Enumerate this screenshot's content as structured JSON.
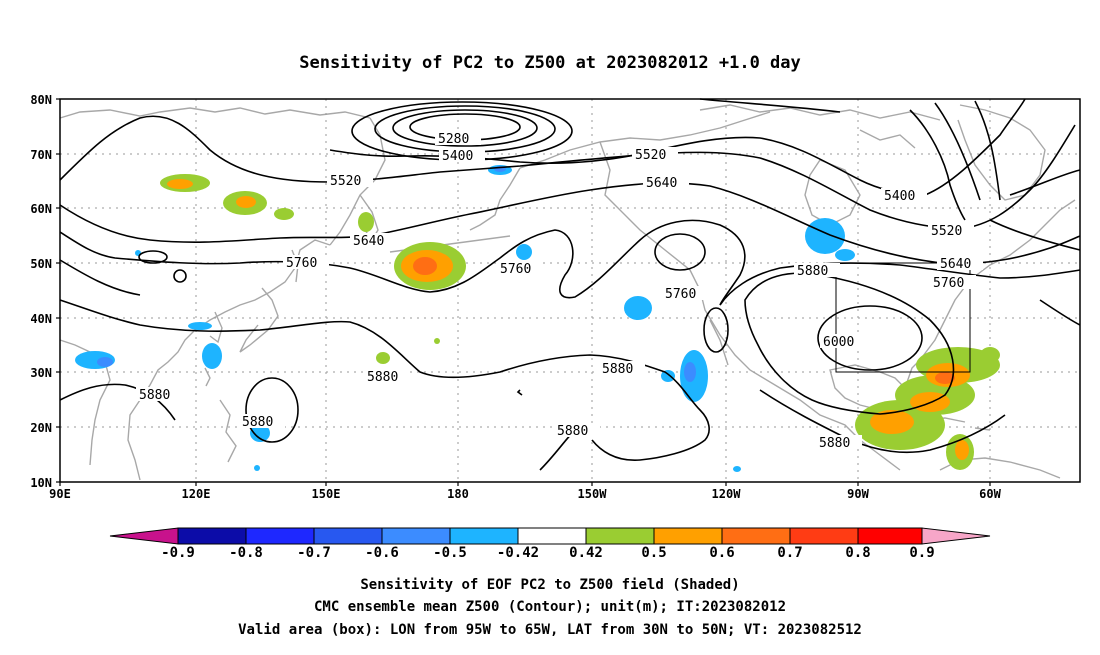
{
  "title": "Sensitivity of PC2 to Z500 at 2023082012 +1.0 day",
  "lat_labels": [
    "80N",
    "70N",
    "60N",
    "50N",
    "40N",
    "30N",
    "20N",
    "10N"
  ],
  "lon_labels": [
    "90E",
    "120E",
    "150E",
    "180",
    "150W",
    "120W",
    "90W",
    "60W"
  ],
  "contours": [
    {
      "label": "5280"
    },
    {
      "label": "5400"
    },
    {
      "label": "5520"
    },
    {
      "label": "5520"
    },
    {
      "label": "5640"
    },
    {
      "label": "5640"
    },
    {
      "label": "5760"
    },
    {
      "label": "5760"
    },
    {
      "label": "5760"
    },
    {
      "label": "5400"
    },
    {
      "label": "5520"
    },
    {
      "label": "5640"
    },
    {
      "label": "5760"
    },
    {
      "label": "5880"
    },
    {
      "label": "6000"
    },
    {
      "label": "5880"
    },
    {
      "label": "5880"
    },
    {
      "label": "5880"
    },
    {
      "label": "5880"
    },
    {
      "label": "5880"
    },
    {
      "label": "5880"
    }
  ],
  "colorbar": {
    "labels": [
      "-0.9",
      "-0.8",
      "-0.7",
      "-0.6",
      "-0.5",
      "-0.42",
      "0.42",
      "0.5",
      "0.6",
      "0.7",
      "0.8",
      "0.9"
    ],
    "colors": {
      "below": "#c8128c",
      "above": "#f7a6c8",
      "bins": [
        "#0c0ca8",
        "#1e28ff",
        "#2858f0",
        "#3c8cff",
        "#1eb4ff",
        "#ffffff",
        "#9acd32",
        "#ffa000",
        "#ff6e14",
        "#ff3c14",
        "#ff0000"
      ]
    }
  },
  "footer": {
    "line1": "Sensitivity of EOF PC2 to Z500 field (Shaded)",
    "line2": "CMC ensemble mean Z500 (Contour); unit(m); IT:2023082012",
    "line3": "Valid area (box): LON from 95W to 65W, LAT from 30N to 50N; VT: 2023082512"
  }
}
